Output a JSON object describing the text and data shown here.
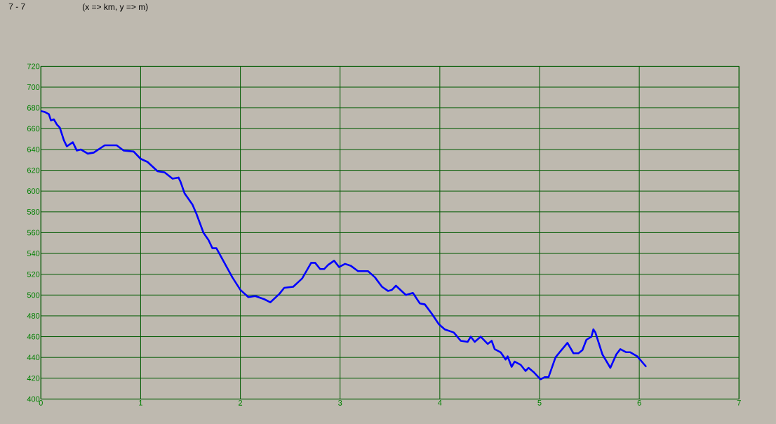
{
  "chart_data": {
    "type": "line",
    "title": "7 - 7",
    "subtitle": "(x => km, y => m)",
    "xlim": [
      0,
      7
    ],
    "ylim": [
      400,
      720
    ],
    "xticks": [
      0,
      1,
      2,
      3,
      4,
      5,
      6,
      7
    ],
    "yticks": [
      400,
      420,
      440,
      460,
      480,
      500,
      520,
      540,
      560,
      580,
      600,
      620,
      640,
      660,
      680,
      700,
      720
    ],
    "grid": true,
    "series": [
      {
        "color": "#0000ff",
        "x": [
          0.0,
          0.04,
          0.08,
          0.1,
          0.13,
          0.16,
          0.19,
          0.23,
          0.26,
          0.32,
          0.36,
          0.4,
          0.47,
          0.53,
          0.64,
          0.76,
          0.83,
          0.93,
          1.0,
          1.07,
          1.17,
          1.24,
          1.32,
          1.38,
          1.4,
          1.44,
          1.52,
          1.56,
          1.63,
          1.68,
          1.72,
          1.76,
          1.92,
          2.0,
          2.08,
          2.15,
          2.24,
          2.3,
          2.39,
          2.44,
          2.53,
          2.62,
          2.71,
          2.75,
          2.8,
          2.84,
          2.88,
          2.94,
          2.99,
          3.05,
          3.11,
          3.18,
          3.28,
          3.35,
          3.42,
          3.48,
          3.52,
          3.56,
          3.66,
          3.73,
          3.8,
          3.85,
          3.92,
          3.99,
          4.05,
          4.14,
          4.21,
          4.28,
          4.31,
          4.35,
          4.41,
          4.48,
          4.52,
          4.55,
          4.61,
          4.66,
          4.68,
          4.72,
          4.75,
          4.81,
          4.86,
          4.89,
          4.94,
          5.01,
          5.05,
          5.09,
          5.16,
          5.21,
          5.28,
          5.34,
          5.39,
          5.43,
          5.47,
          5.52,
          5.54,
          5.56,
          5.63,
          5.71,
          5.77,
          5.81,
          5.87,
          5.91,
          5.98,
          6.07
        ],
        "values": [
          677,
          676,
          674,
          668,
          669,
          664,
          661,
          649,
          643,
          647,
          639,
          640,
          636,
          637,
          644,
          644,
          639,
          638,
          631,
          628,
          619,
          618,
          612,
          613,
          609,
          598,
          587,
          578,
          560,
          553,
          545,
          545,
          517,
          505,
          498,
          499,
          496,
          493,
          501,
          507,
          508,
          516,
          531,
          531,
          525,
          525,
          529,
          533,
          527,
          530,
          528,
          523,
          523,
          517,
          508,
          504,
          505,
          509,
          500,
          502,
          492,
          491,
          482,
          472,
          467,
          464,
          456,
          455,
          460,
          455,
          460,
          453,
          456,
          448,
          445,
          438,
          441,
          431,
          436,
          433,
          427,
          430,
          426,
          419,
          421,
          421,
          440,
          446,
          454,
          444,
          444,
          447,
          457,
          460,
          467,
          464,
          443,
          430,
          443,
          448,
          445,
          445,
          441,
          431
        ]
      }
    ]
  }
}
